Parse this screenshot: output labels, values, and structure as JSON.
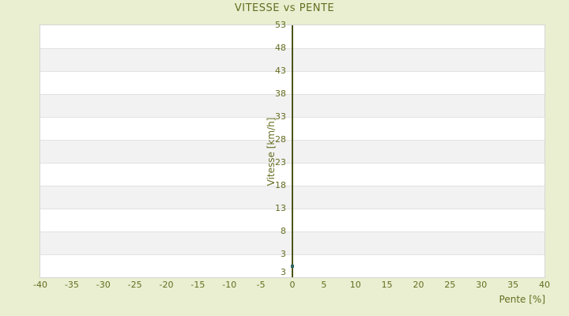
{
  "chart_data": {
    "type": "scatter",
    "title": "VITESSE vs PENTE",
    "xlabel": "Pente [%]",
    "ylabel": "Vitesse [km/h]",
    "xlim": [
      -40,
      40
    ],
    "x_ticks": [
      -40,
      -35,
      -30,
      -25,
      -20,
      -15,
      -10,
      -5,
      0,
      5,
      10,
      15,
      20,
      25,
      30,
      35,
      40
    ],
    "y_ticks": [
      53,
      48,
      43,
      38,
      33,
      28,
      23,
      18,
      13,
      8,
      3
    ],
    "y_tick_step": 5,
    "y_axis_min_label": "3",
    "y_axis_x_position": 0,
    "points": [
      {
        "x": 0,
        "y": 0.5
      }
    ],
    "legend": "none",
    "grid": "horizontal-bands"
  },
  "colors": {
    "background": "#e9efd0",
    "text": "#666d22",
    "axis_line": "#4c5416",
    "point": "#2e6767",
    "band_gray": "#f2f2f2",
    "band_white": "#ffffff",
    "gridline": "#e2e2e2",
    "plot_border": "#d6d6d6"
  }
}
